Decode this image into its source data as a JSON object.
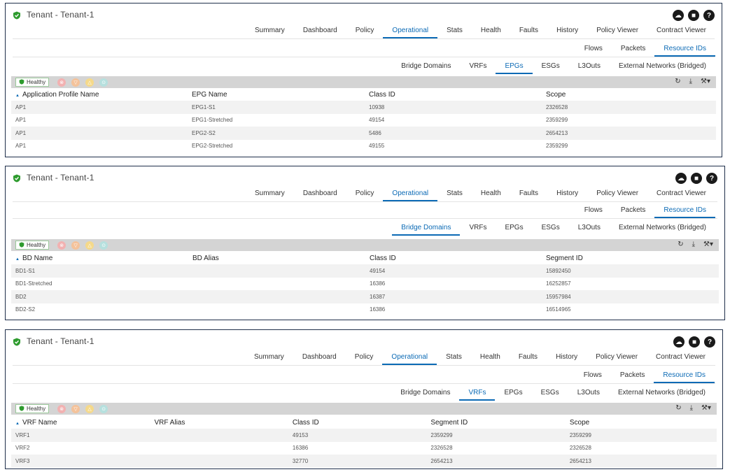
{
  "panels": [
    {
      "title": "Tenant - Tenant-1",
      "top_tabs": [
        "Summary",
        "Dashboard",
        "Policy",
        "Operational",
        "Stats",
        "Health",
        "Faults",
        "History",
        "Policy Viewer",
        "Contract Viewer"
      ],
      "top_active": "Operational",
      "sub_tabs": [
        "Flows",
        "Packets",
        "Resource IDs"
      ],
      "sub_active": "Resource IDs",
      "res_tabs": [
        "Bridge Domains",
        "VRFs",
        "EPGs",
        "ESGs",
        "L3Outs",
        "External Networks (Bridged)"
      ],
      "res_active": "EPGs",
      "health_label": "Healthy",
      "columns": [
        "Application Profile Name",
        "EPG Name",
        "Class ID",
        "Scope"
      ],
      "rows": [
        [
          "AP1",
          "EPG1-S1",
          "10938",
          "2326528"
        ],
        [
          "AP1",
          "EPG1-Stretched",
          "49154",
          "2359299"
        ],
        [
          "AP1",
          "EPG2-S2",
          "5486",
          "2654213"
        ],
        [
          "AP1",
          "EPG2-Stretched",
          "49155",
          "2359299"
        ]
      ]
    },
    {
      "title": "Tenant - Tenant-1",
      "top_tabs": [
        "Summary",
        "Dashboard",
        "Policy",
        "Operational",
        "Stats",
        "Health",
        "Faults",
        "History",
        "Policy Viewer",
        "Contract Viewer"
      ],
      "top_active": "Operational",
      "sub_tabs": [
        "Flows",
        "Packets",
        "Resource IDs"
      ],
      "sub_active": "Resource IDs",
      "res_tabs": [
        "Bridge Domains",
        "VRFs",
        "EPGs",
        "ESGs",
        "L3Outs",
        "External Networks (Bridged)"
      ],
      "res_active": "Bridge Domains",
      "health_label": "Healthy",
      "columns": [
        "BD Name",
        "BD Alias",
        "Class ID",
        "Segment ID"
      ],
      "rows": [
        [
          "BD1-S1",
          "",
          "49154",
          "15892450"
        ],
        [
          "BD1-Stretched",
          "",
          "16386",
          "16252857"
        ],
        [
          "BD2",
          "",
          "16387",
          "15957984"
        ],
        [
          "BD2-S2",
          "",
          "16386",
          "16514965"
        ]
      ]
    },
    {
      "title": "Tenant - Tenant-1",
      "top_tabs": [
        "Summary",
        "Dashboard",
        "Policy",
        "Operational",
        "Stats",
        "Health",
        "Faults",
        "History",
        "Policy Viewer",
        "Contract Viewer"
      ],
      "top_active": "Operational",
      "sub_tabs": [
        "Flows",
        "Packets",
        "Resource IDs"
      ],
      "sub_active": "Resource IDs",
      "res_tabs": [
        "Bridge Domains",
        "VRFs",
        "EPGs",
        "ESGs",
        "L3Outs",
        "External Networks (Bridged)"
      ],
      "res_active": "VRFs",
      "health_label": "Healthy",
      "columns": [
        "VRF Name",
        "VRF Alias",
        "Class ID",
        "Segment ID",
        "Scope"
      ],
      "rows": [
        [
          "VRF1",
          "",
          "49153",
          "2359299",
          "2359299"
        ],
        [
          "VRF2",
          "",
          "16386",
          "2326528",
          "2326528"
        ],
        [
          "VRF3",
          "",
          "32770",
          "2654213",
          "2654213"
        ]
      ]
    }
  ],
  "icons": {
    "title": "shield-check-icon",
    "actions": [
      "cloud-icon",
      "bookmark-icon",
      "help-icon"
    ],
    "severities": [
      "critical-icon",
      "major-icon",
      "minor-icon",
      "warning-icon"
    ],
    "tools": [
      "refresh-icon",
      "download-icon",
      "tools-icon"
    ]
  },
  "colors": {
    "accent": "#0b6ab5",
    "healthy": "#2e9b2e",
    "toolbar": "#d4d4d4"
  }
}
